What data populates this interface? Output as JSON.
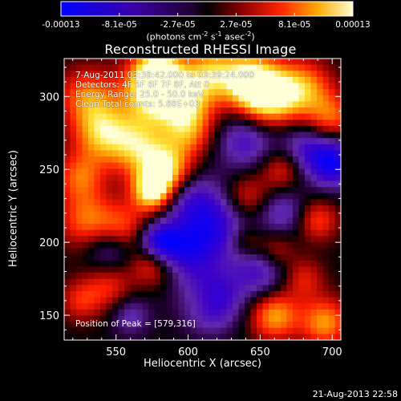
{
  "chart_data": {
    "type": "heatmap",
    "title": "Reconstructed RHESSI Image",
    "xlabel": "Heliocentric X (arcsec)",
    "ylabel": "Heliocentric Y (arcsec)",
    "x_ticks": [
      550,
      600,
      650,
      700
    ],
    "y_ticks": [
      150,
      200,
      250,
      300
    ],
    "xlim": [
      514,
      706
    ],
    "ylim": [
      133,
      326
    ],
    "colorbar": {
      "ticks": [
        "-0.00013",
        "-8.1e-05",
        "-2.7e-05",
        "2.7e-05",
        "8.1e-05",
        "0.00013"
      ],
      "range": [
        -0.00013,
        0.00013
      ],
      "units_main": "(photons cm",
      "units_sup1": "-2",
      "units_mid1": " s",
      "units_sup2": "-1",
      "units_mid2": " asec",
      "units_sup3": "-2",
      "units_end": ")"
    },
    "annotations": [
      "7-Aug-2011 03:38:42.000 to 03:39:24.000",
      "Detectors: 4F 5F 6F 7F 8F, Att 0",
      "Energy Range: 25.0 - 50.0 keV",
      "Clean   Total counts: 5.88E+03"
    ],
    "peak_label": "Position of Peak = [579,316]",
    "grid": false
  },
  "footer": "21-Aug-2013 22:58"
}
